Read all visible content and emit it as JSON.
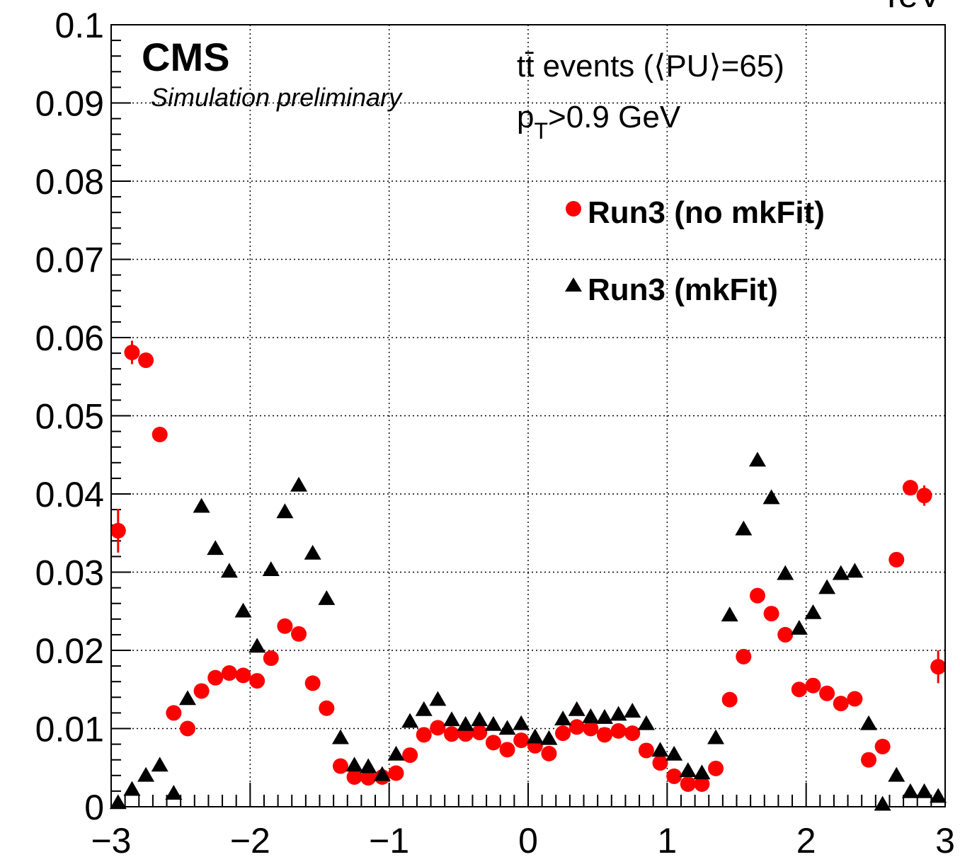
{
  "chart_data": {
    "type": "scatter",
    "x_range": [
      -3,
      3
    ],
    "ylim": [
      0,
      0.1
    ],
    "grid": true,
    "legend_placement": "top-right",
    "x_ticks": [
      "−3",
      "−2",
      "−1",
      "0",
      "1",
      "2",
      "3"
    ],
    "y_ticks": [
      "0",
      "0.01",
      "0.02",
      "0.03",
      "0.04",
      "0.05",
      "0.06",
      "0.07",
      "0.08",
      "0.09",
      "0.1"
    ],
    "y_tick_values": [
      0,
      0.01,
      0.02,
      0.03,
      0.04,
      0.05,
      0.06,
      0.07,
      0.08,
      0.09,
      0.1
    ],
    "x_tick_values": [
      -3,
      -2,
      -1,
      0,
      1,
      2,
      3
    ],
    "top_right_partial_text": "TeV",
    "cms_label": "CMS",
    "sim_label": "Simulation preliminary",
    "annotation_events": "tt̄ events (⟨PU⟩=65)",
    "annotation_pt_p": "p",
    "annotation_pt_sub": "T",
    "annotation_pt_rest": ">0.9 GeV",
    "series": [
      {
        "name": "Run3 (no mkFit)",
        "color": "#ff0000",
        "marker": "circle",
        "x": [
          -2.95,
          -2.85,
          -2.75,
          -2.65,
          -2.55,
          -2.45,
          -2.35,
          -2.25,
          -2.15,
          -2.05,
          -1.95,
          -1.85,
          -1.75,
          -1.65,
          -1.55,
          -1.45,
          -1.35,
          -1.25,
          -1.15,
          -1.05,
          -0.95,
          -0.85,
          -0.75,
          -0.65,
          -0.55,
          -0.45,
          -0.35,
          -0.25,
          -0.15,
          -0.05,
          0.05,
          0.15,
          0.25,
          0.35,
          0.45,
          0.55,
          0.65,
          0.75,
          0.85,
          0.95,
          1.05,
          1.15,
          1.25,
          1.35,
          1.45,
          1.55,
          1.65,
          1.75,
          1.85,
          1.95,
          2.05,
          2.15,
          2.25,
          2.35,
          2.45,
          2.55,
          2.65,
          2.75,
          2.85,
          2.95
        ],
        "y": [
          0.0353,
          0.0581,
          0.0571,
          0.0476,
          0.012,
          0.01,
          0.0148,
          0.0165,
          0.0171,
          0.0168,
          0.0161,
          0.019,
          0.0231,
          0.0221,
          0.0158,
          0.0126,
          0.0052,
          0.0038,
          0.0037,
          0.0038,
          0.0043,
          0.0066,
          0.0092,
          0.0101,
          0.0093,
          0.0093,
          0.0095,
          0.0082,
          0.0073,
          0.0085,
          0.0078,
          0.0068,
          0.0094,
          0.0102,
          0.01,
          0.0092,
          0.0097,
          0.0094,
          0.0072,
          0.0056,
          0.0039,
          0.0029,
          0.0029,
          0.0049,
          0.0137,
          0.0192,
          0.027,
          0.0247,
          0.022,
          0.015,
          0.0155,
          0.0145,
          0.0132,
          0.0138,
          0.006,
          0.0077,
          0.0316,
          0.0408,
          0.0398,
          0.0179
        ],
        "yerr": [
          0.0028,
          0.0015,
          0,
          0,
          0,
          0,
          0,
          0,
          0,
          0,
          0,
          0,
          0,
          0,
          0,
          0,
          0,
          0,
          0,
          0,
          0,
          0,
          0,
          0,
          0,
          0,
          0,
          0,
          0,
          0,
          0,
          0,
          0,
          0,
          0,
          0,
          0,
          0,
          0,
          0,
          0,
          0,
          0,
          0,
          0,
          0,
          0,
          0,
          0,
          0,
          0,
          0,
          0,
          0,
          0,
          0,
          0,
          0,
          0.0013,
          0.0021
        ]
      },
      {
        "name": "Run3 (mkFit)",
        "color": "#000000",
        "marker": "triangle",
        "x": [
          -2.95,
          -2.85,
          -2.75,
          -2.65,
          -2.55,
          -2.45,
          -2.35,
          -2.25,
          -2.15,
          -2.05,
          -1.95,
          -1.85,
          -1.75,
          -1.65,
          -1.55,
          -1.45,
          -1.35,
          -1.25,
          -1.15,
          -1.05,
          -0.95,
          -0.85,
          -0.75,
          -0.65,
          -0.55,
          -0.45,
          -0.35,
          -0.25,
          -0.15,
          -0.05,
          0.05,
          0.15,
          0.25,
          0.35,
          0.45,
          0.55,
          0.65,
          0.75,
          0.85,
          0.95,
          1.05,
          1.15,
          1.25,
          1.35,
          1.45,
          1.55,
          1.65,
          1.75,
          1.85,
          1.95,
          2.05,
          2.15,
          2.25,
          2.35,
          2.45,
          2.55,
          2.65,
          2.75,
          2.85,
          2.95
        ],
        "y": [
          0.0006,
          0.0023,
          0.0041,
          0.0054,
          0.0018,
          0.0139,
          0.0385,
          0.0331,
          0.0302,
          0.0251,
          0.0206,
          0.0304,
          0.0378,
          0.0412,
          0.0325,
          0.0267,
          0.0089,
          0.0054,
          0.0052,
          0.0042,
          0.0068,
          0.011,
          0.0125,
          0.0138,
          0.0112,
          0.0106,
          0.0112,
          0.0106,
          0.0101,
          0.0107,
          0.009,
          0.0088,
          0.0113,
          0.0125,
          0.0116,
          0.0115,
          0.0119,
          0.0123,
          0.0107,
          0.0073,
          0.0068,
          0.0047,
          0.0044,
          0.0089,
          0.0246,
          0.0356,
          0.0444,
          0.0396,
          0.0299,
          0.0229,
          0.0249,
          0.0281,
          0.0299,
          0.0302,
          0.0107,
          0.0004,
          0.0041,
          0.002,
          0.002,
          0.0014
        ]
      }
    ]
  }
}
